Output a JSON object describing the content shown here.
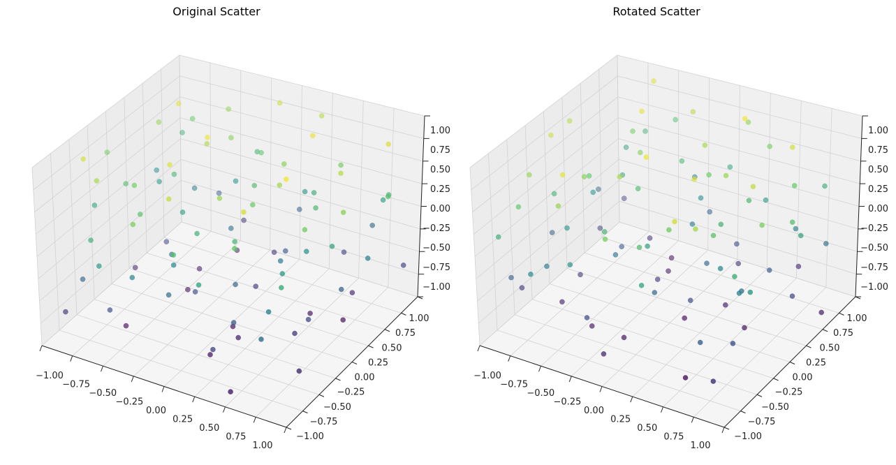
{
  "chart_data": [
    {
      "type": "scatter3d",
      "title": "Original Scatter",
      "xlim": [
        -1,
        1
      ],
      "ylim": [
        -1,
        1
      ],
      "zlim": [
        -1,
        1
      ],
      "ticks": [
        "−1.00",
        "−0.75",
        "−0.50",
        "−0.25",
        "0.00",
        "0.25",
        "0.50",
        "0.75",
        "1.00"
      ],
      "tick_values": [
        -1,
        -0.75,
        -0.5,
        -0.25,
        0,
        0.25,
        0.5,
        0.75,
        1
      ],
      "grid": true,
      "colormap": "viridis",
      "color_by": "z",
      "points": [
        [
          -0.82,
          0.41,
          0.67
        ],
        [
          0.13,
          -0.55,
          -0.91
        ],
        [
          0.57,
          0.22,
          0.34
        ],
        [
          -0.36,
          -0.78,
          -0.12
        ],
        [
          0.91,
          0.65,
          0.88
        ],
        [
          -0.64,
          0.93,
          -0.45
        ],
        [
          0.28,
          -0.17,
          0.52
        ],
        [
          -0.05,
          0.71,
          -0.73
        ],
        [
          0.74,
          -0.88,
          -0.28
        ],
        [
          -0.93,
          -0.31,
          0.15
        ],
        [
          0.46,
          0.84,
          -0.61
        ],
        [
          -0.21,
          0.05,
          0.95
        ],
        [
          0.66,
          -0.42,
          0.08
        ],
        [
          -0.48,
          0.37,
          -0.86
        ],
        [
          0.09,
          -0.96,
          0.41
        ],
        [
          0.83,
          0.14,
          -0.39
        ],
        [
          -0.71,
          -0.63,
          0.72
        ],
        [
          0.35,
          0.58,
          0.19
        ],
        [
          -0.15,
          -0.26,
          -0.54
        ],
        [
          0.97,
          -0.09,
          0.63
        ],
        [
          -0.57,
          0.19,
          0.31
        ],
        [
          0.21,
          0.92,
          0.78
        ],
        [
          -0.88,
          -0.85,
          -0.67
        ],
        [
          0.52,
          -0.71,
          0.86
        ],
        [
          -0.33,
          0.64,
          0.02
        ],
        [
          0.71,
          0.39,
          -0.94
        ],
        [
          -0.02,
          -0.44,
          0.27
        ],
        [
          0.39,
          0.03,
          -0.18
        ],
        [
          -0.76,
          0.77,
          0.49
        ],
        [
          0.88,
          -0.58,
          -0.75
        ],
        [
          -0.42,
          -0.12,
          -0.33
        ],
        [
          0.17,
          0.49,
          -0.47
        ],
        [
          -0.95,
          0.58,
          -0.06
        ],
        [
          0.61,
          -0.27,
          0.97
        ],
        [
          -0.26,
          -0.91,
          0.58
        ],
        [
          0.04,
          0.27,
          0.36
        ],
        [
          0.79,
          0.81,
          0.12
        ],
        [
          -0.61,
          -0.47,
          -0.97
        ],
        [
          0.32,
          -0.84,
          -0.58
        ],
        [
          -0.11,
          0.88,
          0.84
        ],
        [
          0.55,
          0.61,
          0.55
        ],
        [
          -0.84,
          0.07,
          -0.79
        ],
        [
          0.94,
          0.33,
          -0.14
        ],
        [
          -0.39,
          -0.59,
          0.44
        ],
        [
          0.24,
          -0.33,
          -0.83
        ],
        [
          -0.68,
          0.45,
          0.91
        ],
        [
          0.43,
          -0.05,
          0.71
        ],
        [
          -0.19,
          0.33,
          -0.25
        ],
        [
          0.86,
          -0.79,
          0.24
        ],
        [
          -0.52,
          -0.96,
          0.06
        ],
        [
          0.11,
          0.16,
          -0.66
        ],
        [
          -0.74,
          -0.19,
          0.39
        ],
        [
          0.63,
          0.95,
          -0.32
        ],
        [
          -0.29,
          0.51,
          0.62
        ],
        [
          0.37,
          -0.62,
          -0.42
        ],
        [
          -0.9,
          0.86,
          0.21
        ],
        [
          0.72,
          -0.15,
          -0.56
        ],
        [
          -0.07,
          -0.73,
          0.81
        ],
        [
          0.49,
          0.29,
          -0.89
        ],
        [
          -0.58,
          -0.34,
          0.53
        ],
        [
          0.19,
          0.73,
          0.04
        ],
        [
          -0.45,
          0.96,
          -0.71
        ],
        [
          0.99,
          0.52,
          0.42
        ],
        [
          -0.17,
          -0.52,
          -0.08
        ],
        [
          0.27,
          -0.93,
          0.14
        ],
        [
          -0.81,
          -0.71,
          -0.37
        ],
        [
          0.58,
          0.07,
          -0.03
        ],
        [
          -0.31,
          0.21,
          0.74
        ],
        [
          0.81,
          -0.36,
          0.56
        ],
        [
          -0.66,
          0.62,
          -0.18
        ],
        [
          0.06,
          -0.09,
          -0.95
        ],
        [
          0.41,
          0.45,
          0.93
        ],
        [
          -0.97,
          -0.05,
          0.57
        ],
        [
          0.68,
          -0.66,
          -0.16
        ],
        [
          -0.24,
          0.79,
          0.29
        ],
        [
          0.14,
          -0.39,
          0.68
        ],
        [
          -0.53,
          -0.82,
          -0.52
        ],
        [
          0.92,
          0.91,
          -0.62
        ],
        [
          -0.37,
          -0.04,
          0.11
        ],
        [
          0.53,
          -0.97,
          -0.85
        ],
        [
          -0.09,
          0.59,
          0.47
        ],
        [
          0.76,
          0.24,
          0.77
        ],
        [
          -0.7,
          0.28,
          -0.58
        ],
        [
          0.31,
          -0.48,
          0.33
        ],
        [
          -0.86,
          -0.55,
          0.86
        ],
        [
          0.01,
          0.97,
          -0.4
        ],
        [
          0.64,
          -0.21,
          -0.7
        ],
        [
          -0.44,
          0.13,
          -0.91
        ],
        [
          0.89,
          0.71,
          0.28
        ],
        [
          -0.13,
          -0.67,
          -0.29
        ],
        [
          0.23,
          0.36,
          0.61
        ],
        [
          -0.62,
          -0.89,
          0.26
        ],
        [
          0.47,
          -0.76,
          0.49
        ],
        [
          -0.35,
          0.69,
          -0.82
        ],
        [
          0.84,
          -0.02,
          0.18
        ],
        [
          -0.79,
          0.35,
          0.03
        ],
        [
          0.16,
          -0.22,
          -0.36
        ],
        [
          -0.27,
          -0.37,
          0.89
        ],
        [
          0.69,
          0.56,
          -0.77
        ],
        [
          -0.5,
          0.83,
          0.66
        ]
      ]
    },
    {
      "type": "scatter3d",
      "title": "Rotated Scatter",
      "xlim": [
        -1,
        1
      ],
      "ylim": [
        -1,
        1
      ],
      "zlim": [
        -1,
        1
      ],
      "ticks": [
        "−1.00",
        "−0.75",
        "−0.50",
        "−0.25",
        "0.00",
        "0.25",
        "0.50",
        "0.75",
        "1.00"
      ],
      "tick_values": [
        -1,
        -0.75,
        -0.5,
        -0.25,
        0,
        0.25,
        0.5,
        0.75,
        1
      ],
      "grid": true,
      "colormap": "viridis",
      "color_by": "z",
      "points": [
        [
          -0.41,
          -0.82,
          0.67
        ],
        [
          0.55,
          0.13,
          -0.91
        ],
        [
          -0.22,
          0.57,
          0.34
        ],
        [
          0.78,
          -0.36,
          -0.12
        ],
        [
          -0.65,
          0.91,
          0.88
        ],
        [
          -0.93,
          -0.64,
          -0.45
        ],
        [
          0.17,
          0.28,
          0.52
        ],
        [
          -0.71,
          -0.05,
          -0.73
        ],
        [
          0.88,
          0.74,
          -0.28
        ],
        [
          0.31,
          -0.93,
          0.15
        ],
        [
          -0.84,
          0.46,
          -0.61
        ],
        [
          -0.05,
          -0.21,
          0.95
        ],
        [
          0.42,
          0.66,
          0.08
        ],
        [
          -0.37,
          -0.48,
          -0.86
        ],
        [
          0.96,
          0.09,
          0.41
        ],
        [
          -0.14,
          0.83,
          -0.39
        ],
        [
          0.63,
          -0.71,
          0.72
        ],
        [
          -0.58,
          0.35,
          0.19
        ],
        [
          0.26,
          -0.15,
          -0.54
        ],
        [
          0.09,
          0.97,
          0.63
        ],
        [
          -0.19,
          -0.57,
          0.31
        ],
        [
          -0.92,
          0.21,
          0.78
        ],
        [
          0.85,
          -0.88,
          -0.67
        ],
        [
          0.71,
          0.52,
          0.86
        ],
        [
          -0.64,
          -0.33,
          0.02
        ],
        [
          -0.39,
          0.71,
          -0.94
        ],
        [
          0.44,
          -0.02,
          0.27
        ],
        [
          -0.03,
          0.39,
          -0.18
        ],
        [
          -0.77,
          -0.76,
          0.49
        ],
        [
          0.58,
          0.88,
          -0.75
        ],
        [
          0.12,
          -0.42,
          -0.33
        ],
        [
          -0.49,
          0.17,
          -0.47
        ],
        [
          -0.58,
          -0.95,
          -0.06
        ],
        [
          0.27,
          0.61,
          0.97
        ],
        [
          0.91,
          -0.26,
          0.58
        ],
        [
          -0.27,
          0.04,
          0.36
        ],
        [
          -0.81,
          0.79,
          0.12
        ],
        [
          0.47,
          -0.61,
          -0.97
        ],
        [
          0.84,
          0.32,
          -0.58
        ],
        [
          -0.88,
          -0.11,
          0.84
        ],
        [
          -0.61,
          0.55,
          0.55
        ],
        [
          -0.07,
          -0.84,
          -0.79
        ],
        [
          -0.33,
          0.94,
          -0.14
        ],
        [
          0.59,
          -0.39,
          0.44
        ],
        [
          0.33,
          0.24,
          -0.83
        ],
        [
          -0.45,
          -0.68,
          0.91
        ],
        [
          0.05,
          0.43,
          0.71
        ],
        [
          -0.33,
          -0.19,
          -0.25
        ],
        [
          0.79,
          0.86,
          0.24
        ],
        [
          0.96,
          -0.52,
          0.06
        ],
        [
          -0.16,
          0.11,
          -0.66
        ],
        [
          0.19,
          -0.74,
          0.39
        ],
        [
          -0.95,
          0.63,
          -0.32
        ],
        [
          -0.51,
          -0.29,
          0.62
        ],
        [
          0.62,
          0.37,
          -0.42
        ],
        [
          -0.86,
          -0.9,
          0.21
        ],
        [
          0.15,
          0.72,
          -0.56
        ],
        [
          0.73,
          -0.07,
          0.81
        ],
        [
          -0.29,
          0.49,
          -0.89
        ],
        [
          0.34,
          -0.58,
          0.53
        ],
        [
          -0.73,
          0.19,
          0.04
        ],
        [
          -0.96,
          -0.45,
          -0.71
        ],
        [
          -0.52,
          0.99,
          0.42
        ],
        [
          0.52,
          -0.17,
          -0.08
        ],
        [
          0.93,
          0.27,
          0.14
        ],
        [
          0.71,
          -0.81,
          -0.37
        ],
        [
          -0.07,
          0.58,
          -0.03
        ],
        [
          -0.21,
          -0.31,
          0.74
        ],
        [
          0.36,
          0.81,
          0.56
        ],
        [
          -0.62,
          -0.66,
          -0.18
        ],
        [
          0.09,
          0.06,
          -0.95
        ],
        [
          -0.45,
          0.41,
          0.93
        ],
        [
          0.05,
          -0.97,
          0.57
        ],
        [
          0.66,
          0.68,
          -0.16
        ],
        [
          -0.79,
          -0.24,
          0.29
        ],
        [
          0.39,
          0.14,
          0.68
        ],
        [
          0.82,
          -0.53,
          -0.52
        ],
        [
          -0.91,
          0.92,
          -0.62
        ],
        [
          0.04,
          -0.37,
          0.11
        ],
        [
          0.97,
          0.53,
          -0.85
        ],
        [
          -0.59,
          -0.09,
          0.47
        ],
        [
          -0.24,
          0.76,
          0.77
        ],
        [
          -0.28,
          -0.7,
          -0.58
        ],
        [
          0.48,
          0.31,
          0.33
        ],
        [
          0.55,
          -0.86,
          0.86
        ],
        [
          -0.97,
          0.01,
          -0.4
        ],
        [
          0.21,
          0.64,
          -0.7
        ],
        [
          -0.13,
          -0.44,
          -0.91
        ],
        [
          -0.71,
          0.89,
          0.28
        ],
        [
          0.67,
          -0.13,
          -0.29
        ],
        [
          -0.36,
          0.23,
          0.61
        ],
        [
          0.89,
          -0.62,
          0.26
        ],
        [
          0.76,
          0.47,
          0.49
        ],
        [
          -0.69,
          -0.35,
          -0.82
        ],
        [
          0.02,
          0.84,
          0.18
        ],
        [
          -0.35,
          -0.79,
          0.03
        ],
        [
          0.22,
          0.16,
          -0.36
        ],
        [
          0.37,
          -0.27,
          0.89
        ],
        [
          -0.56,
          0.69,
          -0.77
        ],
        [
          -0.83,
          -0.5,
          0.66
        ]
      ]
    }
  ]
}
